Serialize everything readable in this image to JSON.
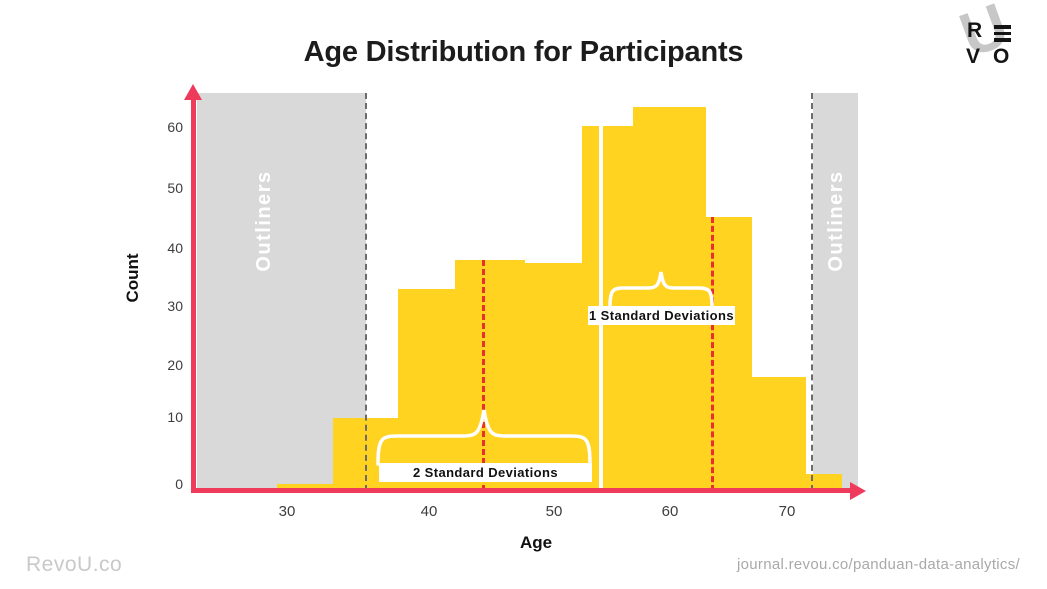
{
  "header": {
    "title": "Age Distribution for Participants"
  },
  "logo": {
    "letters": [
      "R",
      "E",
      "V",
      "O"
    ]
  },
  "footer": {
    "brand": "RevoU.co",
    "url": "journal.revou.co/panduan-data-analytics/"
  },
  "colors": {
    "accent_red": "#EE3B5C",
    "dashed_red": "#E8312F",
    "bar_yellow": "#FFD320",
    "gray_region": "#D9D9D9",
    "dashed_gray": "#6B6B6B",
    "title_black": "#1C1C1C",
    "footer_gray": "#C9C9C9"
  },
  "chart_data": {
    "type": "bar",
    "title": "Age Distribution for Participants",
    "xlabel": "Age",
    "ylabel": "Count",
    "x_ticks": [
      30,
      40,
      50,
      60,
      70
    ],
    "y_ticks": [
      0,
      10,
      20,
      30,
      40,
      50,
      60
    ],
    "xlim": [
      24,
      76
    ],
    "ylim": [
      0,
      65
    ],
    "grid": false,
    "legend": false,
    "bins_age": [
      "29-33",
      "33-38",
      "38-42",
      "42-48",
      "48-52",
      "52-57",
      "57-63",
      "63-67",
      "67-72",
      "72-75"
    ],
    "counts": [
      1,
      10,
      33,
      38,
      37,
      60,
      63,
      45,
      18,
      2
    ],
    "mean_age": 54,
    "annotations": {
      "sd1_label": "1 Standard Deviations",
      "sd2_label": "2 Standard Deviations",
      "outliers_label": "Outliners",
      "sd1_line_age": 64,
      "sd2_line_age": 44,
      "outlier_boundary_low_age": 36,
      "outlier_boundary_high_age": 72
    }
  }
}
